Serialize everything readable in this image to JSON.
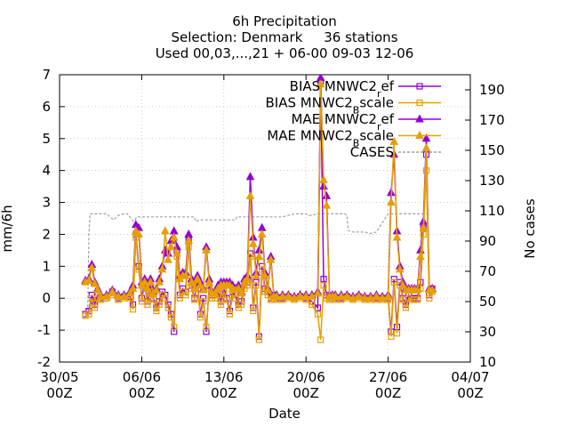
{
  "title_lines": [
    "6h Precipitation",
    "Selection: Denmark     36 stations",
    "Used 00,03,...,21 + 06-00 09-03 12-06"
  ],
  "chart_data": {
    "type": "line",
    "title": "6h Precipitation",
    "xlabel": "Date",
    "ylabel": "mm/6h",
    "y2label": "No cases",
    "xlim": [
      0,
      35
    ],
    "ylim": [
      -2,
      7
    ],
    "y2lim": [
      10,
      200
    ],
    "x_ticks": [
      {
        "x": 0,
        "l1": "30/05",
        "l2": "00Z"
      },
      {
        "x": 7,
        "l1": "06/06",
        "l2": "00Z"
      },
      {
        "x": 14,
        "l1": "13/06",
        "l2": "00Z"
      },
      {
        "x": 21,
        "l1": "20/06",
        "l2": "00Z"
      },
      {
        "x": 28,
        "l1": "27/06",
        "l2": "00Z"
      },
      {
        "x": 35,
        "l1": "04/07",
        "l2": "00Z"
      }
    ],
    "y_ticks": [
      -2,
      -1,
      0,
      1,
      2,
      3,
      4,
      5,
      6,
      7
    ],
    "y2_ticks": [
      10,
      30,
      50,
      70,
      90,
      110,
      130,
      150,
      170,
      190
    ],
    "grid": true,
    "legend_position": "top-right",
    "series": [
      {
        "name": "BIAS MNWC2ref",
        "legend_main": "BIAS MNWC2",
        "legend_sub": "r",
        "legend_tail": "ef",
        "color": "#9400d3",
        "marker": "square",
        "axis": "y",
        "x": [
          2.2,
          2.5,
          2.75,
          3,
          3.25,
          3.5,
          4,
          4.5,
          5,
          5.5,
          6,
          6.25,
          6.5,
          6.75,
          7,
          7.25,
          7.5,
          7.75,
          8,
          8.25,
          8.5,
          8.75,
          9,
          9.25,
          9.5,
          9.75,
          10,
          10.25,
          10.5,
          10.75,
          11,
          11.25,
          11.5,
          11.75,
          12,
          12.25,
          12.5,
          12.75,
          13,
          13.25,
          13.5,
          13.75,
          14,
          14.25,
          14.5,
          14.75,
          15,
          15.25,
          15.5,
          15.75,
          16,
          16.25,
          16.5,
          16.75,
          17,
          17.25,
          17.5,
          17.75,
          18,
          18.25,
          18.5,
          19,
          19.5,
          20,
          20.5,
          21,
          21.5,
          22,
          22.25,
          22.5,
          22.75,
          23,
          23.25,
          23.5,
          24,
          24.5,
          25,
          25.5,
          26,
          26.5,
          27,
          27.5,
          28,
          28.25,
          28.5,
          28.75,
          29,
          29.25,
          29.5,
          29.75,
          30,
          30.25,
          30.5,
          30.75,
          31,
          31.25,
          31.5,
          31.75
        ],
        "y": [
          -0.5,
          -0.4,
          0.1,
          -0.2,
          0.1,
          0,
          0,
          0.2,
          0,
          0.05,
          0.05,
          -0.2,
          2.0,
          1.0,
          0,
          0.5,
          -0.1,
          0.3,
          0,
          -0.3,
          -0.1,
          0.2,
          0.1,
          -0.2,
          -0.5,
          -1.05,
          1.5,
          0.1,
          0.3,
          0.2,
          1.8,
          0.4,
          0,
          0.5,
          -0.5,
          0,
          -1.05,
          0.4,
          0.1,
          0.1,
          0.2,
          -0.1,
          0.3,
          0,
          -0.4,
          0.2,
          0.1,
          -0.2,
          -0.1,
          0.4,
          0.5,
          1.4,
          -0.3,
          0.5,
          -1.2,
          1.0,
          0.3,
          0.2,
          0,
          0.1,
          0,
          0,
          0.05,
          0,
          0.05,
          0,
          -0.1,
          -0.3,
          6.8,
          0.6,
          0.1,
          0,
          0.05,
          0,
          0,
          0.05,
          0,
          0.05,
          0,
          0,
          0,
          0,
          0,
          -1.05,
          0.6,
          -0.9,
          0.5,
          0,
          -0.2,
          0.1,
          0,
          0,
          0,
          0.5,
          2.2,
          4.5,
          0.1,
          0.3
        ]
      },
      {
        "name": "BIAS MNWC2Bscale",
        "legend_main": "BIAS MNWC2",
        "legend_sub": "B",
        "legend_tail": "scale",
        "color": "#e69f00",
        "marker": "square",
        "axis": "y",
        "x": [
          2.2,
          2.5,
          2.75,
          3,
          3.25,
          3.5,
          4,
          4.5,
          5,
          5.5,
          6,
          6.25,
          6.5,
          6.75,
          7,
          7.25,
          7.5,
          7.75,
          8,
          8.25,
          8.5,
          8.75,
          9,
          9.25,
          9.5,
          9.75,
          10,
          10.25,
          10.5,
          10.75,
          11,
          11.25,
          11.5,
          11.75,
          12,
          12.25,
          12.5,
          12.75,
          13,
          13.25,
          13.5,
          13.75,
          14,
          14.25,
          14.5,
          14.75,
          15,
          15.25,
          15.5,
          15.75,
          16,
          16.25,
          16.5,
          16.75,
          17,
          17.25,
          17.5,
          17.75,
          18,
          18.25,
          18.5,
          19,
          19.5,
          20,
          20.5,
          21,
          21.5,
          22,
          22.25,
          22.5,
          22.75,
          23,
          23.25,
          23.5,
          24,
          24.5,
          25,
          25.5,
          26,
          26.5,
          27,
          27.5,
          28,
          28.25,
          28.5,
          28.75,
          29,
          29.25,
          29.5,
          29.75,
          30,
          30.25,
          30.5,
          30.75,
          31,
          31.25,
          31.5,
          31.75
        ],
        "y": [
          -0.55,
          -0.5,
          0,
          -0.3,
          0,
          -0.05,
          0,
          0.1,
          -0.05,
          0,
          0,
          -0.35,
          1.9,
          0.9,
          -0.1,
          0.4,
          -0.2,
          0.2,
          -0.05,
          -0.4,
          -0.2,
          0.1,
          0,
          -0.3,
          -0.6,
          -0.9,
          1.3,
          0,
          0.2,
          0.1,
          1.6,
          0.3,
          -0.05,
          0.4,
          -0.6,
          -0.1,
          -0.9,
          0.3,
          0,
          0,
          0.1,
          -0.2,
          0.2,
          -0.05,
          -0.5,
          0.1,
          0,
          -0.3,
          -0.2,
          0.3,
          0.4,
          1.3,
          -0.4,
          0.4,
          -1.3,
          0.9,
          0.2,
          0.1,
          -0.05,
          0,
          -0.05,
          -0.05,
          0,
          -0.05,
          0,
          -0.05,
          -0.2,
          -0.5,
          -1.3,
          0.4,
          0,
          -0.05,
          0,
          -0.05,
          -0.05,
          0,
          -0.05,
          0,
          -0.05,
          -0.05,
          -0.05,
          -0.05,
          -0.05,
          -1.2,
          0.5,
          -1.1,
          0.4,
          -0.05,
          -0.3,
          0,
          -0.05,
          -0.05,
          -0.05,
          0.3,
          2.0,
          4.0,
          0,
          0.2
        ]
      },
      {
        "name": "MAE MNWC2ref",
        "legend_main": "MAE MNWC2",
        "legend_sub": "r",
        "legend_tail": "ef",
        "color": "#9400d3",
        "marker": "triangle",
        "axis": "y",
        "x": [
          2.2,
          2.5,
          2.75,
          3,
          3.25,
          3.5,
          4,
          4.5,
          5,
          5.5,
          6,
          6.25,
          6.5,
          6.75,
          7,
          7.25,
          7.5,
          7.75,
          8,
          8.25,
          8.5,
          8.75,
          9,
          9.25,
          9.5,
          9.75,
          10,
          10.25,
          10.5,
          10.75,
          11,
          11.25,
          11.5,
          11.75,
          12,
          12.25,
          12.5,
          12.75,
          13,
          13.25,
          13.5,
          13.75,
          14,
          14.25,
          14.5,
          14.75,
          15,
          15.25,
          15.5,
          15.75,
          16,
          16.25,
          16.5,
          16.75,
          17,
          17.25,
          17.5,
          17.75,
          18,
          18.25,
          18.5,
          19,
          19.5,
          20,
          20.5,
          21,
          21.5,
          22,
          22.25,
          22.5,
          22.75,
          23,
          23.25,
          23.5,
          24,
          24.5,
          25,
          25.5,
          26,
          26.5,
          27,
          27.5,
          28,
          28.25,
          28.5,
          28.75,
          29,
          29.25,
          29.5,
          29.75,
          30,
          30.25,
          30.5,
          30.75,
          31,
          31.25,
          31.5,
          31.75
        ],
        "y": [
          0.55,
          0.6,
          1.05,
          0.5,
          0.3,
          0.1,
          0.1,
          0.25,
          0.1,
          0.1,
          0.2,
          0.4,
          2.3,
          2.2,
          0.5,
          0.6,
          0.4,
          0.6,
          0.2,
          0.3,
          0.6,
          1.0,
          1.5,
          1.4,
          1.8,
          2.1,
          1.6,
          0.7,
          0.8,
          0.8,
          2.0,
          0.6,
          0.4,
          0.7,
          0.5,
          0.3,
          1.6,
          0.6,
          0.2,
          0.2,
          0.4,
          0.5,
          0.5,
          0.5,
          0.5,
          0.4,
          0.3,
          0.4,
          0.2,
          0.6,
          0.7,
          3.8,
          1.9,
          0.8,
          1.5,
          2.2,
          0.8,
          0.3,
          1.3,
          0.1,
          0.1,
          0.1,
          0.1,
          0.05,
          0.1,
          0.1,
          0.1,
          0.2,
          6.9,
          3.5,
          3.2,
          0.1,
          0.1,
          0.1,
          0.1,
          0.1,
          0.05,
          0.1,
          0.05,
          0.05,
          0.1,
          0.05,
          0.1,
          3.3,
          4.5,
          2.1,
          1.0,
          0.5,
          0.3,
          0.3,
          0.3,
          0.3,
          0.3,
          1.5,
          2.4,
          5.0,
          0.3,
          0.3
        ]
      },
      {
        "name": "MAE MNWC2Bscale",
        "legend_main": "MAE MNWC2",
        "legend_sub": "B",
        "legend_tail": "scale",
        "color": "#e69f00",
        "marker": "triangle",
        "axis": "y",
        "x": [
          2.2,
          2.5,
          2.75,
          3,
          3.25,
          3.5,
          4,
          4.5,
          5,
          5.5,
          6,
          6.25,
          6.5,
          6.75,
          7,
          7.25,
          7.5,
          7.75,
          8,
          8.25,
          8.5,
          8.75,
          9,
          9.25,
          9.5,
          9.75,
          10,
          10.25,
          10.5,
          10.75,
          11,
          11.25,
          11.5,
          11.75,
          12,
          12.25,
          12.5,
          12.75,
          13,
          13.25,
          13.5,
          13.75,
          14,
          14.25,
          14.5,
          14.75,
          15,
          15.25,
          15.5,
          15.75,
          16,
          16.25,
          16.5,
          16.75,
          17,
          17.25,
          17.5,
          17.75,
          18,
          18.25,
          18.5,
          19,
          19.5,
          20,
          20.5,
          21,
          21.5,
          22,
          22.25,
          22.5,
          22.75,
          23,
          23.25,
          23.5,
          24,
          24.5,
          25,
          25.5,
          26,
          26.5,
          27,
          27.5,
          28,
          28.25,
          28.5,
          28.75,
          29,
          29.25,
          29.5,
          29.75,
          30,
          30.25,
          30.5,
          30.75,
          31,
          31.25,
          31.5,
          31.75
        ],
        "y": [
          0.5,
          0.55,
          0.95,
          0.45,
          0.25,
          0.05,
          0.05,
          0.2,
          0.05,
          0.05,
          0.15,
          0.3,
          2.1,
          2.0,
          0.4,
          0.5,
          0.3,
          0.5,
          0.15,
          0.25,
          0.5,
          0.9,
          2.1,
          1.2,
          1.6,
          1.9,
          1.4,
          0.6,
          0.7,
          0.7,
          1.8,
          0.5,
          0.3,
          0.6,
          0.4,
          0.25,
          1.5,
          0.5,
          0.15,
          0.15,
          0.3,
          0.4,
          0.4,
          0.4,
          0.4,
          0.3,
          0.25,
          0.3,
          0.15,
          0.5,
          0.6,
          3.2,
          1.7,
          0.7,
          1.3,
          2.0,
          0.7,
          0.25,
          1.2,
          0.05,
          0.05,
          0.05,
          0.05,
          0.0,
          0.05,
          0.05,
          0.05,
          0.15,
          6.7,
          3.7,
          2.9,
          0.05,
          0.05,
          0.05,
          0.05,
          0.05,
          0.0,
          0.05,
          0.0,
          0.0,
          0.05,
          0.0,
          0.05,
          3.0,
          4.9,
          1.9,
          0.9,
          0.4,
          0.25,
          0.25,
          0.25,
          0.25,
          0.25,
          1.3,
          2.2,
          4.7,
          0.25,
          0.25
        ]
      },
      {
        "name": "CASES",
        "legend_main": "CASES",
        "legend_sub": "",
        "legend_tail": "",
        "color": "#a0a0a0",
        "marker": "none",
        "axis": "y2",
        "dashed": true,
        "x": [
          2.2,
          2.4,
          2.5,
          2.6,
          4,
          4.3,
          4.6,
          5,
          5.5,
          5.8,
          6,
          6.3,
          6.6,
          7,
          7.5,
          8,
          9,
          10,
          11,
          11.5,
          11.6,
          12,
          12.2,
          12.5,
          12.6,
          13,
          13.5,
          14,
          15,
          15.1,
          15.5,
          16,
          17,
          18,
          19,
          20,
          21,
          21.2,
          21.5,
          22,
          22.2,
          22.4,
          23,
          24,
          24.3,
          24.5,
          24.6,
          25,
          26,
          26.5,
          27,
          28,
          29,
          30,
          30.5,
          31,
          31.5
        ],
        "y": [
          45,
          45,
          95,
          108,
          108,
          106,
          104,
          107,
          108,
          108,
          106,
          103,
          106,
          106,
          106,
          106,
          106,
          106,
          106,
          106,
          103,
          104,
          104,
          104,
          104,
          104,
          104,
          104,
          104,
          106,
          106,
          106,
          106,
          106,
          106,
          108,
          108,
          107,
          107,
          108,
          108,
          108,
          108,
          108,
          108,
          107,
          97,
          96,
          96,
          95,
          96,
          108,
          108,
          108,
          108,
          108,
          108
        ]
      }
    ]
  }
}
